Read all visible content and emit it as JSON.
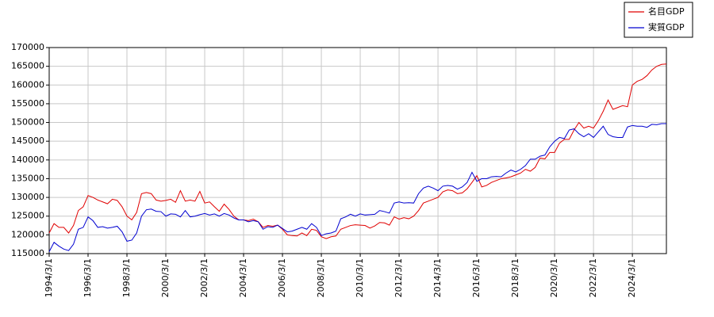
{
  "chart_data": {
    "type": "line",
    "x": [
      "1994/3/1",
      "1994/6/1",
      "1994/9/1",
      "1994/12/1",
      "1995/3/1",
      "1995/6/1",
      "1995/9/1",
      "1995/12/1",
      "1996/3/1",
      "1996/6/1",
      "1996/9/1",
      "1996/12/1",
      "1997/3/1",
      "1997/6/1",
      "1997/9/1",
      "1997/12/1",
      "1998/3/1",
      "1998/6/1",
      "1998/9/1",
      "1998/12/1",
      "1999/3/1",
      "1999/6/1",
      "1999/9/1",
      "1999/12/1",
      "2000/3/1",
      "2000/6/1",
      "2000/9/1",
      "2000/12/1",
      "2001/3/1",
      "2001/6/1",
      "2001/9/1",
      "2001/12/1",
      "2002/3/1",
      "2002/6/1",
      "2002/9/1",
      "2002/12/1",
      "2003/3/1",
      "2003/6/1",
      "2003/9/1",
      "2003/12/1",
      "2004/3/1",
      "2004/6/1",
      "2004/9/1",
      "2004/12/1",
      "2005/3/1",
      "2005/6/1",
      "2005/9/1",
      "2005/12/1",
      "2006/3/1",
      "2006/6/1",
      "2006/9/1",
      "2006/12/1",
      "2007/3/1",
      "2007/6/1",
      "2007/9/1",
      "2007/12/1",
      "2008/3/1",
      "2008/6/1",
      "2008/9/1",
      "2008/12/1",
      "2009/3/1",
      "2009/6/1",
      "2009/9/1",
      "2009/12/1",
      "2010/3/1",
      "2010/6/1",
      "2010/9/1",
      "2010/12/1",
      "2011/3/1",
      "2011/6/1",
      "2011/9/1",
      "2011/12/1",
      "2012/3/1",
      "2012/6/1",
      "2012/9/1",
      "2012/12/1",
      "2013/3/1",
      "2013/6/1",
      "2013/9/1",
      "2013/12/1",
      "2014/3/1",
      "2014/6/1",
      "2014/9/1",
      "2014/12/1",
      "2015/3/1",
      "2015/6/1",
      "2015/9/1",
      "2015/12/1",
      "2016/3/1",
      "2016/6/1",
      "2016/9/1",
      "2016/12/1",
      "2017/3/1",
      "2017/6/1",
      "2017/9/1",
      "2017/12/1",
      "2018/3/1",
      "2018/6/1",
      "2018/9/1",
      "2018/12/1",
      "2019/3/1",
      "2019/6/1",
      "2019/9/1",
      "2019/12/1",
      "2020/3/1",
      "2020/6/1",
      "2020/9/1",
      "2020/12/1",
      "2021/3/1",
      "2021/6/1",
      "2021/9/1",
      "2021/12/1",
      "2022/3/1",
      "2022/6/1",
      "2022/9/1",
      "2022/12/1",
      "2023/3/1",
      "2023/6/1",
      "2023/9/1",
      "2023/12/1",
      "2024/3/1",
      "2024/6/1",
      "2024/9/1",
      "2024/12/1",
      "2025/3/1",
      "2025/6/1",
      "2025/9/1",
      "2025/12/1"
    ],
    "series": [
      {
        "name": "名目GDP",
        "color": "#e00000",
        "values": [
          120500,
          123000,
          122000,
          122000,
          120500,
          122500,
          126500,
          127500,
          130500,
          130000,
          129300,
          128800,
          128300,
          129500,
          129200,
          127500,
          125000,
          124000,
          126000,
          131000,
          131300,
          131000,
          129300,
          129000,
          129200,
          129500,
          128700,
          131800,
          129000,
          129300,
          129000,
          131600,
          128500,
          128800,
          127500,
          126300,
          128200,
          126800,
          125000,
          124000,
          124000,
          123800,
          124200,
          123500,
          122000,
          122500,
          122300,
          122600,
          121500,
          120000,
          119800,
          119700,
          120500,
          119800,
          121500,
          121200,
          119500,
          119000,
          119500,
          119700,
          121500,
          122000,
          122500,
          122700,
          122600,
          122500,
          121800,
          122400,
          123300,
          123200,
          122600,
          124800,
          124200,
          124600,
          124300,
          125000,
          126500,
          128500,
          129000,
          129500,
          130000,
          131500,
          132000,
          131800,
          131000,
          131200,
          132300,
          134000,
          135800,
          132800,
          133200,
          134000,
          134500,
          135000,
          135200,
          135500,
          136000,
          136500,
          137500,
          137000,
          138000,
          140500,
          140300,
          142000,
          142000,
          144500,
          145500,
          145500,
          148000,
          150000,
          148500,
          149000,
          148500,
          150500,
          153000,
          156000,
          153500,
          154000,
          154500,
          154200,
          160000,
          161000,
          161500,
          162500,
          164000,
          165000,
          165500,
          165600
        ]
      },
      {
        "name": "実質GDP",
        "color": "#0000d0",
        "values": [
          115500,
          118000,
          117000,
          116200,
          115800,
          117500,
          121500,
          122000,
          124800,
          123800,
          122000,
          122200,
          121800,
          122000,
          122300,
          120800,
          118300,
          118600,
          120500,
          125000,
          126700,
          126900,
          126300,
          126200,
          125000,
          125600,
          125500,
          124800,
          126500,
          124800,
          125000,
          125400,
          125700,
          125300,
          125600,
          125000,
          125700,
          125300,
          124500,
          124000,
          124000,
          123500,
          123800,
          123500,
          121500,
          122200,
          122000,
          122600,
          121700,
          120800,
          121000,
          121500,
          122000,
          121500,
          123000,
          122000,
          119800,
          120300,
          120500,
          121000,
          124300,
          124800,
          125500,
          125000,
          125600,
          125300,
          125400,
          125500,
          126500,
          126200,
          125800,
          128500,
          128800,
          128500,
          128600,
          128500,
          131000,
          132500,
          133000,
          132500,
          131800,
          133000,
          133200,
          133000,
          132200,
          132800,
          134000,
          136700,
          134300,
          135000,
          135000,
          135500,
          135600,
          135500,
          136500,
          137300,
          136800,
          137500,
          138500,
          140200,
          140200,
          141000,
          141300,
          143500,
          145000,
          146000,
          145700,
          148000,
          148300,
          147000,
          146200,
          147000,
          146000,
          147500,
          149000,
          146800,
          146200,
          146000,
          146000,
          148800,
          149200,
          149000,
          149000,
          148700,
          149500,
          149400,
          149700,
          149700
        ]
      }
    ],
    "xlim": [
      "1994/3/1",
      "2025/12/1"
    ],
    "xticks": [
      "1994/3/1",
      "1996/3/1",
      "1998/3/1",
      "2000/3/1",
      "2002/3/1",
      "2004/3/1",
      "2006/3/1",
      "2008/3/1",
      "2010/3/1",
      "2012/3/1",
      "2014/3/1",
      "2016/3/1",
      "2018/3/1",
      "2020/3/1",
      "2022/3/1",
      "2024/3/1"
    ],
    "ylim": [
      115000,
      170000
    ],
    "yticks": [
      115000,
      120000,
      125000,
      130000,
      135000,
      140000,
      145000,
      150000,
      155000,
      160000,
      165000,
      170000
    ],
    "grid": true,
    "legend": "top-right"
  }
}
